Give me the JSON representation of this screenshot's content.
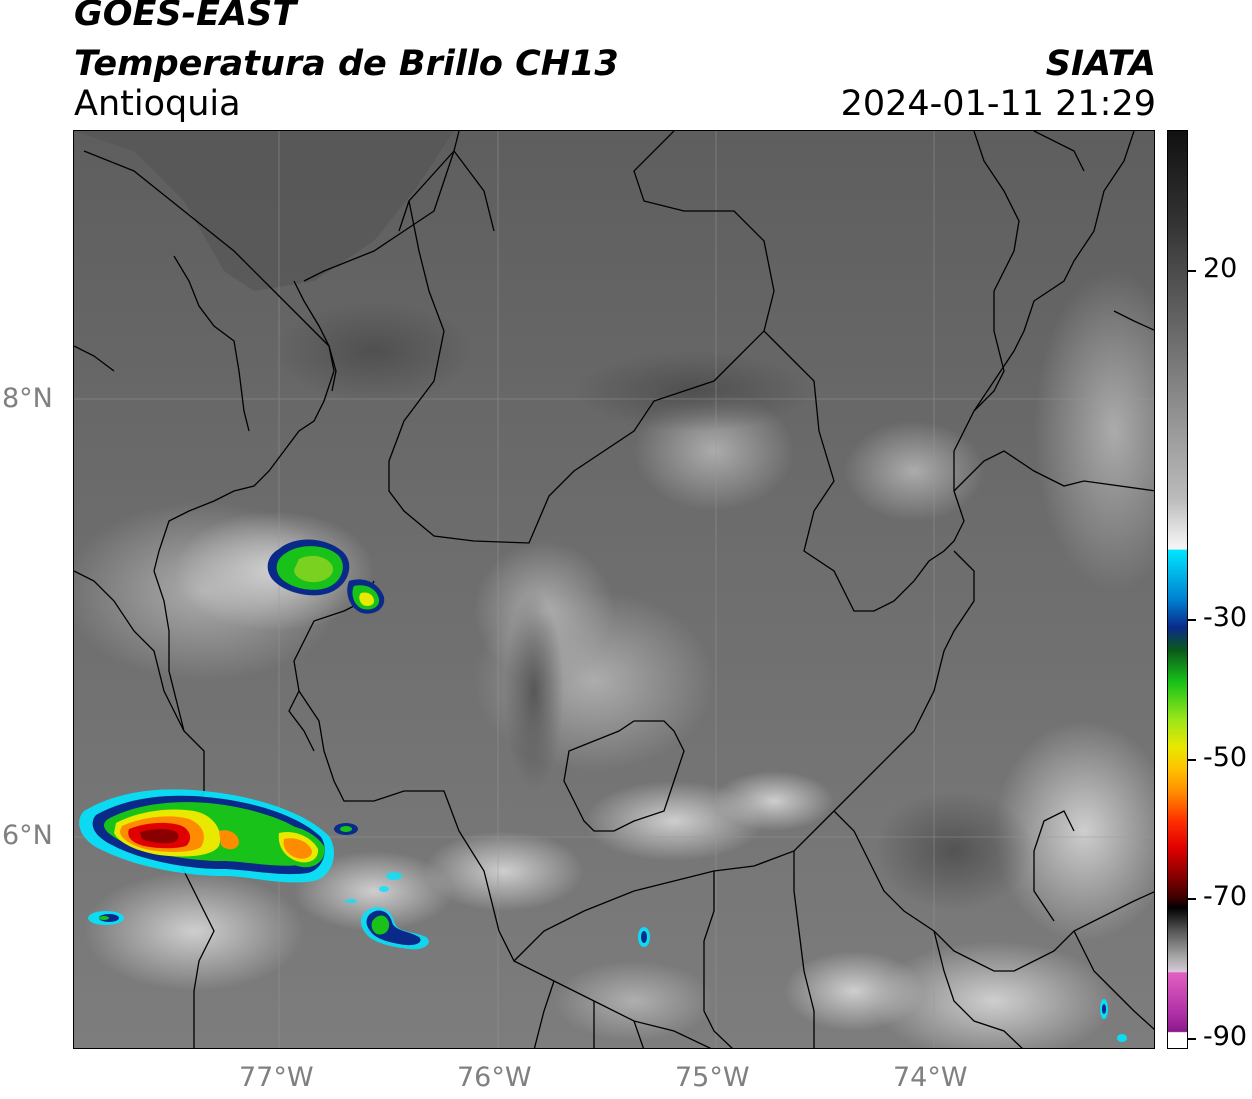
{
  "header": {
    "satellite": "GOES-EAST",
    "product": "Temperatura de Brillo CH13",
    "region": "Antioquia",
    "agency": "SIATA",
    "datetime": "2024-01-11 21:29"
  },
  "map": {
    "lat_labels": [
      "8°N",
      "6°N"
    ],
    "lon_labels": [
      "77°W",
      "76°W",
      "75°W",
      "74°W"
    ],
    "lat_range": [
      5.0,
      9.2
    ],
    "lon_range": [
      -77.95,
      -73.05
    ]
  },
  "colorbar": {
    "ticks": [
      "20",
      "-30",
      "-50",
      "-70",
      "-90"
    ],
    "range": [
      -90,
      40
    ],
    "unit": "",
    "colors": {
      "warm_gray_top": "#111111",
      "white": "#f5f5f5",
      "cyan": "#00e5ff",
      "blue": "#0a2a8a",
      "green": "#19c219",
      "yellow": "#e8e800",
      "orange": "#ff8c00",
      "red": "#e00000",
      "dark_red": "#3a0000",
      "pink": "#e060c0",
      "purple": "#8a1a8a"
    }
  }
}
